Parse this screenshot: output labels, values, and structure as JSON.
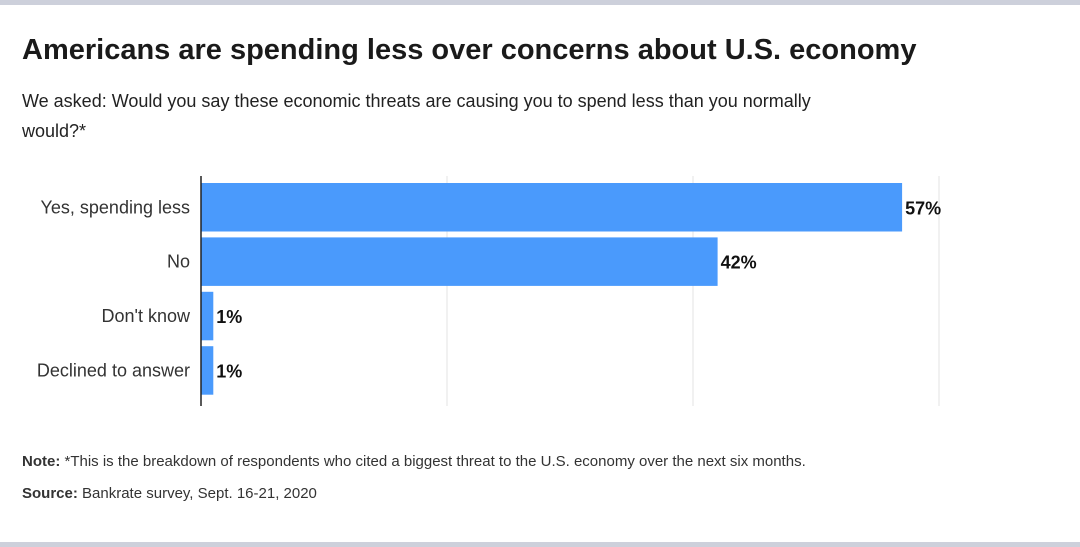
{
  "title": "Americans are spending less over concerns about U.S. economy",
  "subtitle": "We asked: Would you say these economic threats are causing you to spend less than you normally would?*",
  "note_label": "Note:",
  "note_text": "*This is the breakdown of respondents who cited a biggest threat to the U.S. economy over the next six months.",
  "source_label": "Source:",
  "source_text": "Bankrate survey, Sept. 16-21, 2020",
  "colors": {
    "bar": "#4a9afc",
    "frame": "#cdd0db"
  },
  "chart_data": {
    "type": "bar",
    "orientation": "horizontal",
    "categories": [
      "Yes, spending less",
      "No",
      "Don't know",
      "Declined to answer"
    ],
    "values": [
      57,
      42,
      1,
      1
    ],
    "data_labels": [
      "57%",
      "42%",
      "1%",
      "1%"
    ],
    "xlim": [
      0,
      60
    ],
    "grid": true,
    "gridlines": [
      20,
      40,
      60
    ]
  }
}
